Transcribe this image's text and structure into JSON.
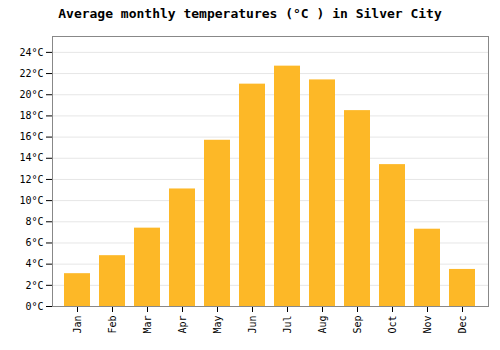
{
  "chart_data": {
    "type": "bar",
    "title": "Average monthly temperatures (°C ) in Silver City",
    "categories": [
      "Jan",
      "Feb",
      "Mar",
      "Apr",
      "May",
      "Jun",
      "Jul",
      "Aug",
      "Sep",
      "Oct",
      "Nov",
      "Dec"
    ],
    "values": [
      3.1,
      4.8,
      7.4,
      11.1,
      15.7,
      21.0,
      22.7,
      21.4,
      18.5,
      13.4,
      7.3,
      3.5
    ],
    "color": "#FDB827",
    "ylim": [
      0,
      25.5
    ],
    "yticks": [
      {
        "value": 0,
        "label": "0°C"
      },
      {
        "value": 2,
        "label": "2°C"
      },
      {
        "value": 4,
        "label": "4°C"
      },
      {
        "value": 6,
        "label": "6°C"
      },
      {
        "value": 8,
        "label": "8°C"
      },
      {
        "value": 10,
        "label": "10°C"
      },
      {
        "value": 12,
        "label": "12°C"
      },
      {
        "value": 14,
        "label": "14°C"
      },
      {
        "value": 16,
        "label": "16°C"
      },
      {
        "value": 18,
        "label": "18°C"
      },
      {
        "value": 20,
        "label": "20°C"
      },
      {
        "value": 22,
        "label": "22°C"
      },
      {
        "value": 24,
        "label": "24°C"
      }
    ],
    "grid": true
  }
}
